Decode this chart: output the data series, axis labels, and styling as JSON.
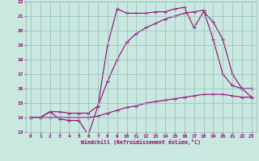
{
  "xlabel": "Windchill (Refroidissement éolien,°C)",
  "bg_color": "#c8e8e0",
  "line_color": "#990077",
  "grid_color": "#99bbbb",
  "ylim": [
    13,
    22
  ],
  "xlim": [
    -0.5,
    23.5
  ],
  "yticks": [
    13,
    14,
    15,
    16,
    17,
    18,
    19,
    20,
    21,
    22
  ],
  "xticks": [
    0,
    1,
    2,
    3,
    4,
    5,
    6,
    7,
    8,
    9,
    10,
    11,
    12,
    13,
    14,
    15,
    16,
    17,
    18,
    19,
    20,
    21,
    22,
    23
  ],
  "line1_x": [
    0,
    1,
    2,
    3,
    4,
    5,
    6,
    7,
    8,
    9,
    10,
    11,
    12,
    13,
    14,
    15,
    16,
    17,
    18,
    19,
    20,
    21,
    22,
    23
  ],
  "line1_y": [
    14.0,
    14.0,
    14.4,
    13.9,
    13.8,
    13.8,
    12.8,
    14.8,
    19.0,
    21.5,
    21.2,
    21.2,
    21.2,
    21.3,
    21.3,
    21.5,
    21.6,
    20.2,
    21.3,
    20.6,
    19.4,
    17.0,
    16.0,
    15.4
  ],
  "line2_x": [
    0,
    1,
    2,
    3,
    4,
    5,
    6,
    7,
    8,
    9,
    10,
    11,
    12,
    13,
    14,
    15,
    16,
    17,
    18,
    19,
    20,
    21,
    22,
    23
  ],
  "line2_y": [
    14.0,
    14.0,
    14.4,
    14.4,
    14.3,
    14.3,
    14.3,
    14.8,
    16.5,
    18.0,
    19.2,
    19.8,
    20.2,
    20.5,
    20.8,
    21.0,
    21.2,
    21.3,
    21.4,
    19.4,
    17.0,
    16.2,
    16.0,
    16.0
  ],
  "line3_x": [
    0,
    1,
    2,
    3,
    4,
    5,
    6,
    7,
    8,
    9,
    10,
    11,
    12,
    13,
    14,
    15,
    16,
    17,
    18,
    19,
    20,
    21,
    22,
    23
  ],
  "line3_y": [
    14.0,
    14.0,
    14.0,
    14.0,
    14.0,
    14.0,
    14.0,
    14.1,
    14.3,
    14.5,
    14.7,
    14.8,
    15.0,
    15.1,
    15.2,
    15.3,
    15.4,
    15.5,
    15.6,
    15.6,
    15.6,
    15.5,
    15.4,
    15.4
  ]
}
